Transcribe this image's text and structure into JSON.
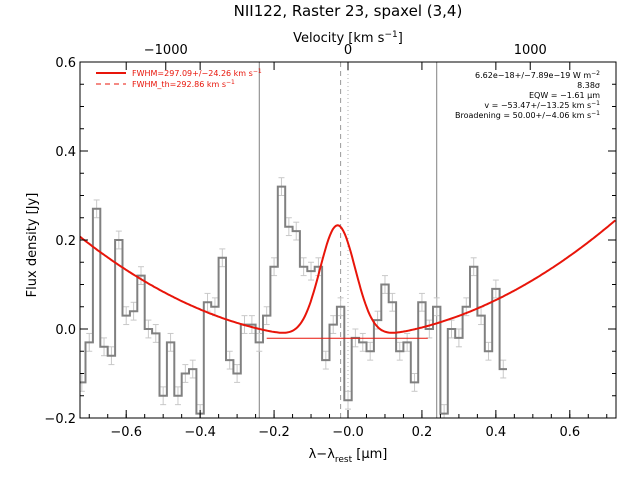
{
  "chart_data": {
    "type": "line",
    "title": "NII122, Raster 23, spaxel (3,4)",
    "xlabel_main": "λ−λ",
    "xlabel_sub": "rest",
    "xlabel_unit": " [μm]",
    "ylabel": "Flux density [Jy]",
    "top_axis_label_main": "Velocity [km s",
    "top_axis_label_sup": "−1",
    "top_axis_label_end": "]",
    "xlim": [
      -0.725,
      0.725
    ],
    "ylim": [
      -0.2,
      0.6
    ],
    "x_ticks": [
      {
        "v": -0.6,
        "label": "−0.6"
      },
      {
        "v": -0.4,
        "label": "−0.4"
      },
      {
        "v": -0.2,
        "label": "−0.2"
      },
      {
        "v": 0.0,
        "label": "−0.0"
      },
      {
        "v": 0.2,
        "label": "0.2"
      },
      {
        "v": 0.4,
        "label": "0.4"
      },
      {
        "v": 0.6,
        "label": "0.6"
      }
    ],
    "y_ticks": [
      {
        "v": -0.2,
        "label": "−0.2"
      },
      {
        "v": 0.0,
        "label": "0.0"
      },
      {
        "v": 0.2,
        "label": "0.2"
      },
      {
        "v": 0.4,
        "label": "0.4"
      },
      {
        "v": 0.6,
        "label": "0.6"
      }
    ],
    "top_ticks": [
      {
        "v": -0.493,
        "label": "−1000"
      },
      {
        "v": 0.0,
        "label": "0"
      },
      {
        "v": 0.493,
        "label": "1000"
      }
    ],
    "vertical_lines": [
      -0.24,
      0.24
    ],
    "dashed_line": -0.02,
    "dotted_line": 0.0,
    "legend": [
      {
        "label": "FWHM=297.09+/−24.26 km s",
        "sup": "−1",
        "style": "solid"
      },
      {
        "label": "FWHM_th=292.86 km s",
        "sup": "−1",
        "style": "dashed"
      }
    ],
    "annotations": [
      {
        "text": "6.62e−18+/−7.89e−19 W m",
        "sup": "−2"
      },
      {
        "text": "8.38σ",
        "sup": ""
      },
      {
        "text": "EQW = −1.61 μm",
        "sup": ""
      },
      {
        "text": "v = −53.47+/−13.25 km s",
        "sup": "−1"
      },
      {
        "text": "Broadening = 50.00+/−4.06 km s",
        "sup": "−1"
      }
    ],
    "spectrum": {
      "x_start": -0.73,
      "step": 0.02,
      "values": [
        -0.12,
        -0.03,
        0.27,
        -0.04,
        -0.06,
        0.2,
        0.03,
        0.04,
        0.12,
        0.0,
        -0.01,
        -0.15,
        -0.03,
        -0.15,
        -0.1,
        -0.09,
        -0.19,
        0.06,
        0.05,
        0.16,
        -0.07,
        -0.1,
        0.01,
        0.01,
        -0.03,
        0.03,
        0.14,
        0.32,
        0.23,
        0.22,
        0.14,
        0.13,
        0.14,
        -0.07,
        0.01,
        0.05,
        -0.16,
        -0.02,
        -0.03,
        -0.05,
        0.02,
        0.1,
        0.06,
        -0.05,
        -0.03,
        -0.12,
        0.06,
        0.0,
        0.05,
        -0.19,
        0.0,
        -0.02,
        0.05,
        0.14,
        0.03,
        -0.05,
        0.09,
        -0.09
      ]
    },
    "model": {
      "baseline_a": -0.021,
      "baseline_c": 0.47,
      "amp": 0.254,
      "center": -0.028,
      "sigma": 0.048
    },
    "colors": {
      "model": "#e8150a",
      "spectrum": "#808080",
      "errorbar": "#c8c8c8"
    }
  }
}
